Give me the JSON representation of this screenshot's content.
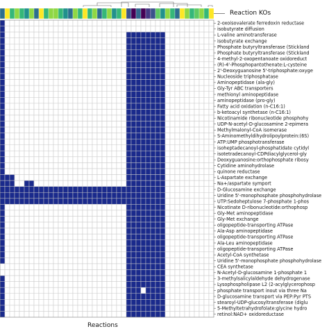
{
  "figure": {
    "type": "clustered-heatmap",
    "col_axis_title": "Reactions",
    "top_bar_title": "Reaction KOs",
    "colors": {
      "filled": "#1a2a8c",
      "empty": "#ffffff",
      "grid": "#c8c8c8"
    }
  },
  "row_labels": [
    "2-oxoisovalerate ferredoxin reductase",
    "isobutyrate diffusion",
    "L-valine aminotransferase",
    "isobutyrate exchange",
    "Phosphate butyryltransferase (Stickland",
    "Phosphate butyryltransferase (Stickland",
    "4-methyl-2-oxopentanoate oxidoreduct",
    "(R)-4'-Phosphopantothenate:L-cysteine",
    "2'-Deoxyguanosine 5'-triphosphate:oxyge",
    "Nucleoside triphosphatase",
    "Aminopeptidase (ala-gly)",
    "Gly-Tyr ABC transporters",
    "methionyl aminopeptidase",
    "aminopeptidase (pro-gly)",
    "Fatty acid oxidation (n-C16:1)",
    "b-ketoacyl synthetase (n-C16:1)",
    "Nicotinamide ribonucleotide phosphohy",
    "UDP-N-acetyl-D-glucosamine 2-epimera",
    "Methylmalonyl-CoA isomerase",
    "S-Aminomethyldihydrolipoylprotein:(6S)",
    "ATP:UMP phosphotransferase",
    "isoheptadecanoyl-phosphatidate cytidyl",
    "isotetradecanoyl-CDPdiacylglycerol-gly",
    "Deoxyguanosine:orthophosphate ribosy",
    "Cytidine aminohydrolase",
    "quinone reductase",
    "L-Aspartate exchange",
    "Na+/aspartate symport",
    "D-Glucosamine exchange",
    "Uridine 5'-monophosphate phosphohydrolase",
    "UTP:Sedoheptulose 7-phosphate 1-phos",
    "Nicotinate D-ribonucleotide:orthophosp",
    "Gly-Met aminopeptidase",
    "Gly-Met exchange",
    "oligopeptide-transporting ATPase",
    "Ala-Asp aminopeptidase",
    "oligopeptide-transporting ATPase",
    "Ala-Leu aminopeptidase",
    "oligopeptide-transporting ATPase",
    "Acetyl-CoA synthetase",
    "Uridine 5'-monophosphate phosphohydrolase",
    "CEA synthetase",
    "N-Acetyl-D-glucosamine 1-phosphate 1",
    "3-methylsalicylaldehyde dehydrogenase",
    "Lysophospholipase L2 (2-acylglycerophosp",
    "phosphate transport inout via three Na",
    "D-glucosamine transport via PEP:Pyr PTS",
    "stearoyl-UDP-glucosyltransferase (diglu",
    "5-Methyltetrahydrofolate:glycine hydro",
    "retinol:NAD+ oxidoreductase"
  ],
  "colorbar_palette": [
    "#2d6e8e",
    "#35b779",
    "#8fd744",
    "#fde725",
    "#21918c",
    "#3b528b",
    "#440154",
    "#5ec962",
    "#31688e",
    "#443983"
  ]
}
